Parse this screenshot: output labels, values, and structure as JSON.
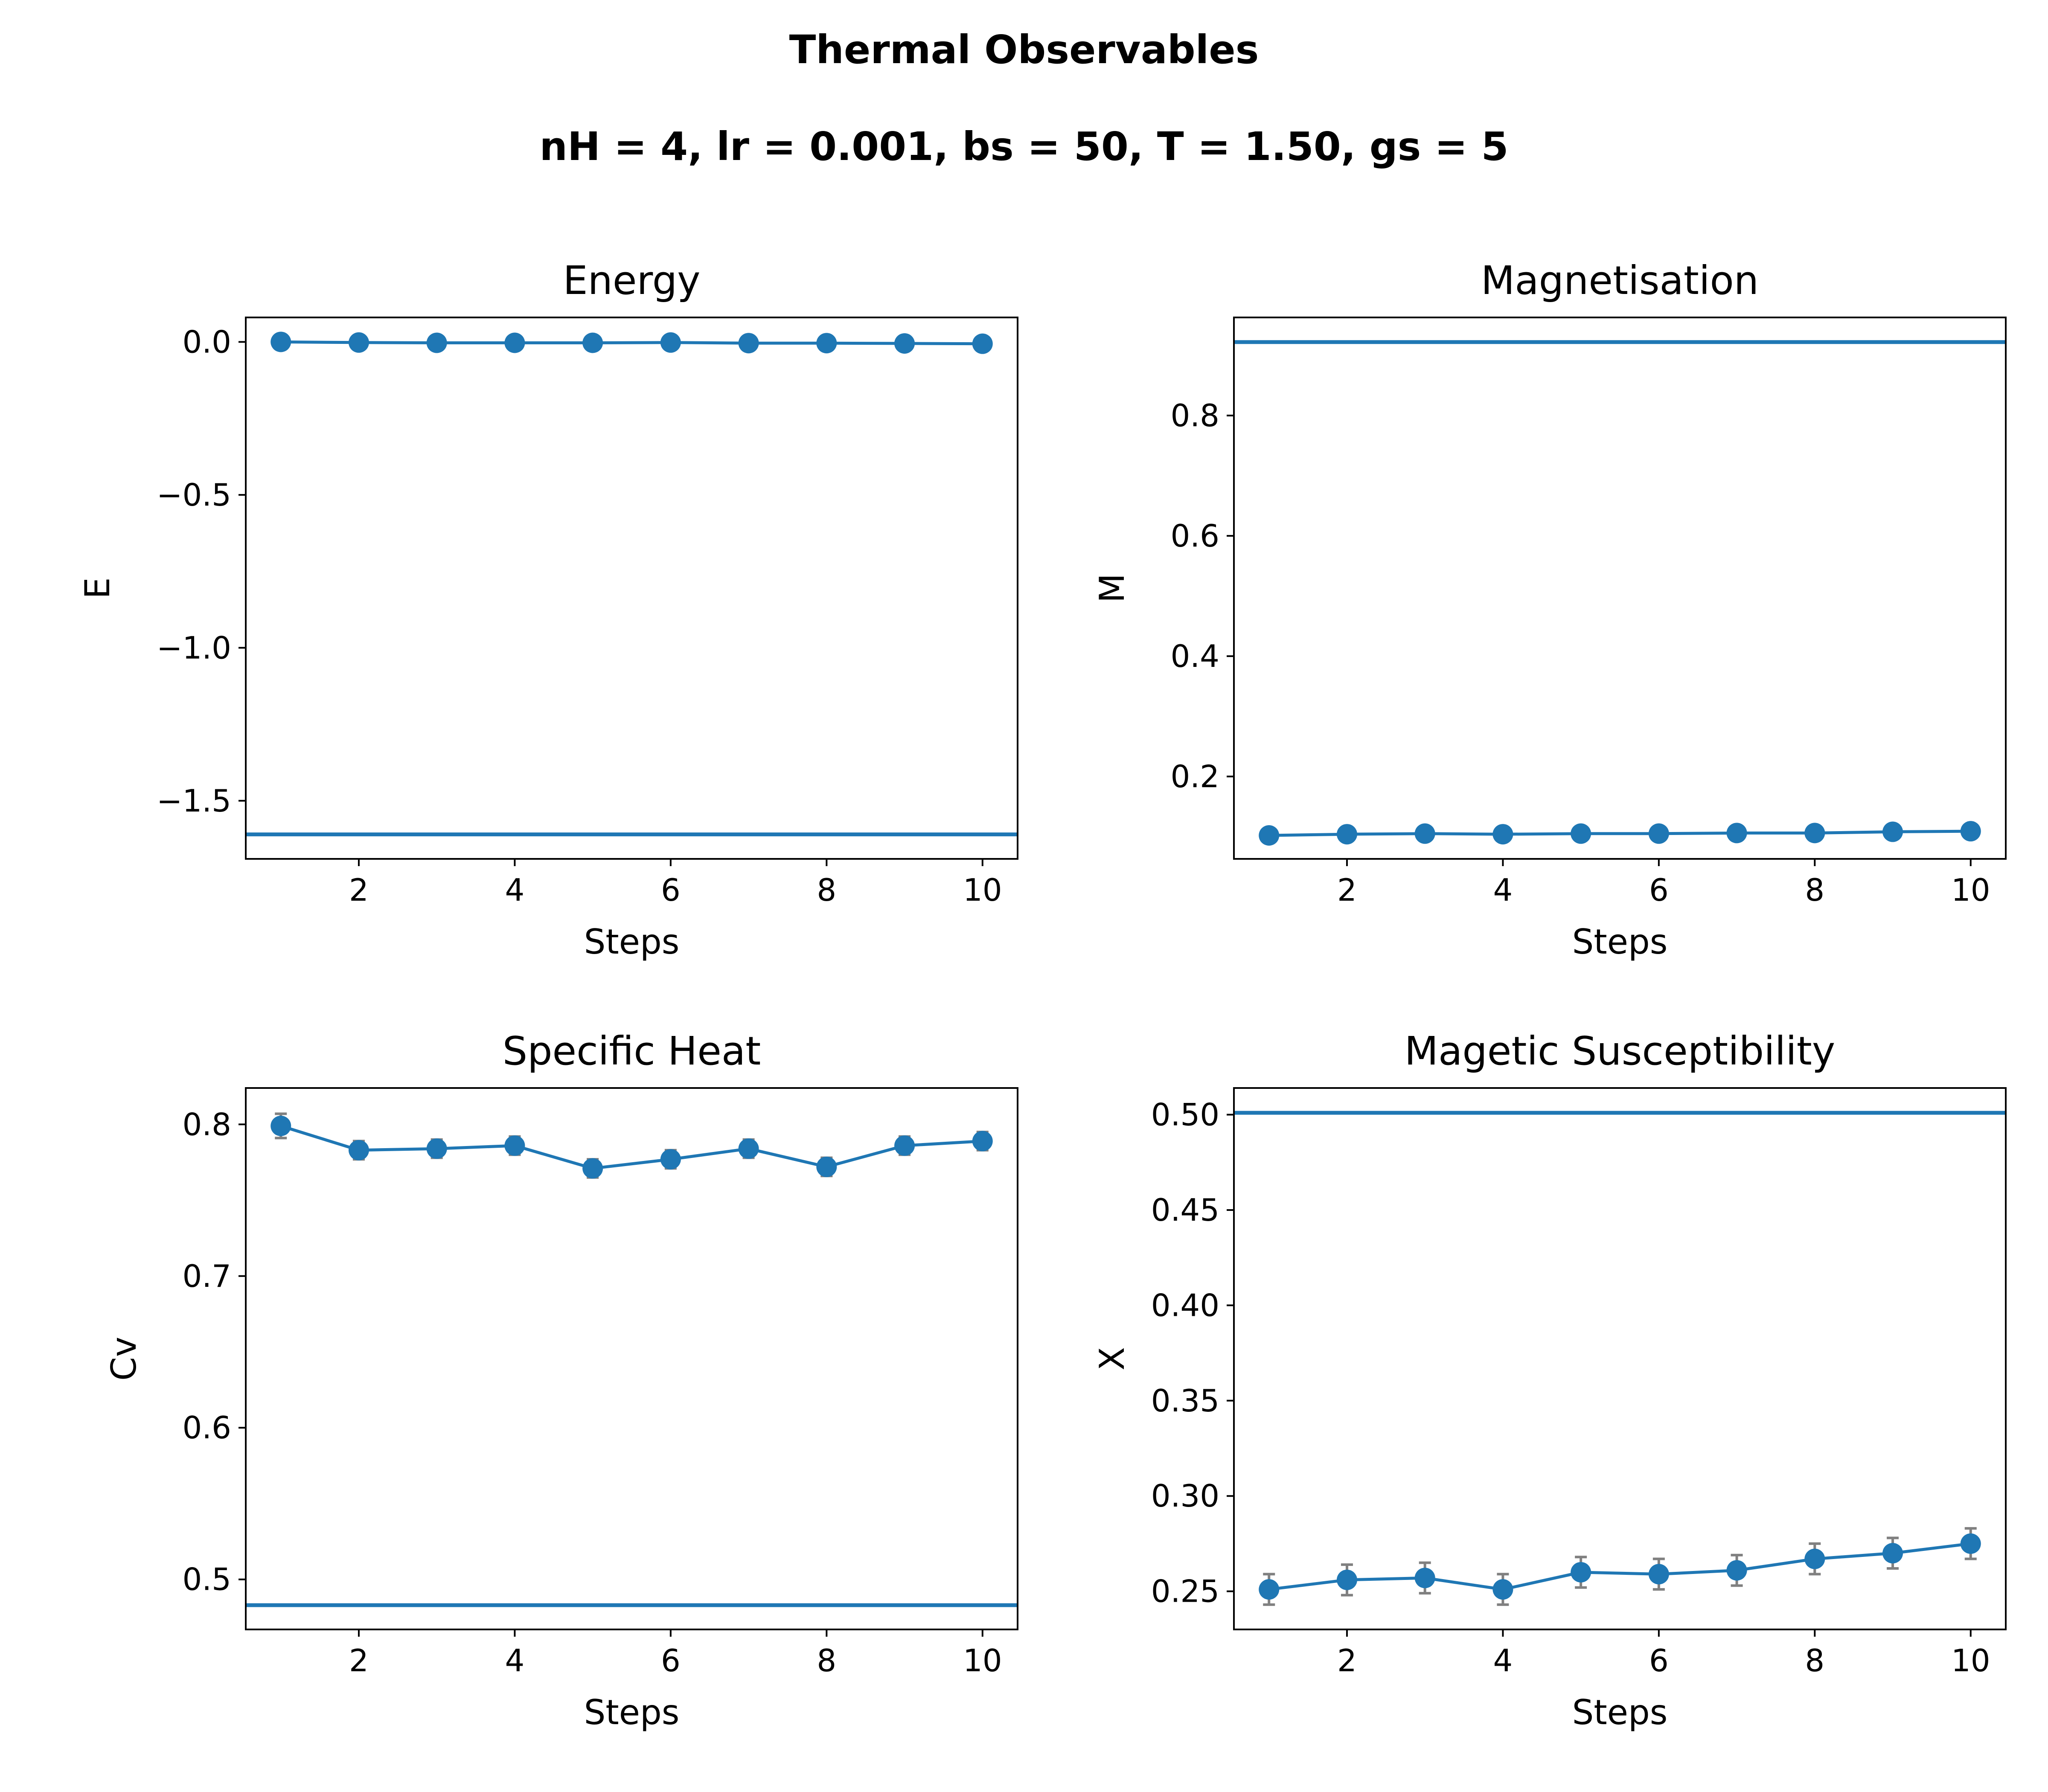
{
  "figure": {
    "title": "Thermal Observables",
    "subtitle": "nH = 4, lr = 0.001, bs = 50,  T = 1.50, gs = 5"
  },
  "colors": {
    "series": "#1f77b4",
    "errorbar": "#808080",
    "axes": "#000000"
  },
  "chart_data": [
    {
      "type": "line",
      "title": "Energy",
      "xlabel": "Steps",
      "ylabel": "E",
      "x": [
        1,
        2,
        3,
        4,
        5,
        6,
        7,
        8,
        9,
        10
      ],
      "series": [
        {
          "values": [
            0.0,
            -0.002,
            -0.003,
            -0.003,
            -0.003,
            -0.002,
            -0.004,
            -0.004,
            -0.005,
            -0.006
          ],
          "errors": null,
          "marker": "circle"
        }
      ],
      "reference_line": -1.61,
      "xlim": [
        0.55,
        10.45
      ],
      "ylim": [
        -1.69,
        0.08
      ],
      "xticks": [
        2,
        4,
        6,
        8,
        10
      ],
      "xticklabels": [
        "2",
        "4",
        "6",
        "8",
        "10"
      ],
      "yticks": [
        0.0,
        -0.5,
        -1.0,
        -1.5
      ],
      "yticklabels": [
        "0.0",
        "−0.5",
        "−1.0",
        "−1.5"
      ]
    },
    {
      "type": "line",
      "title": "Magnetisation",
      "xlabel": "Steps",
      "ylabel": "M",
      "x": [
        1,
        2,
        3,
        4,
        5,
        6,
        7,
        8,
        9,
        10
      ],
      "series": [
        {
          "values": [
            0.102,
            0.104,
            0.105,
            0.104,
            0.105,
            0.105,
            0.106,
            0.106,
            0.108,
            0.109
          ],
          "errors": null,
          "marker": "circle"
        }
      ],
      "reference_line": 0.922,
      "xlim": [
        0.55,
        10.45
      ],
      "ylim": [
        0.063,
        0.963
      ],
      "xticks": [
        2,
        4,
        6,
        8,
        10
      ],
      "xticklabels": [
        "2",
        "4",
        "6",
        "8",
        "10"
      ],
      "yticks": [
        0.2,
        0.4,
        0.6,
        0.8
      ],
      "yticklabels": [
        "0.2",
        "0.4",
        "0.6",
        "0.8"
      ]
    },
    {
      "type": "line",
      "title": "Specific Heat",
      "xlabel": "Steps",
      "ylabel": "Cv",
      "x": [
        1,
        2,
        3,
        4,
        5,
        6,
        7,
        8,
        9,
        10
      ],
      "series": [
        {
          "values": [
            0.799,
            0.783,
            0.784,
            0.786,
            0.771,
            0.777,
            0.784,
            0.772,
            0.786,
            0.789
          ],
          "errors": [
            0.008,
            0.006,
            0.006,
            0.006,
            0.006,
            0.006,
            0.006,
            0.006,
            0.006,
            0.006
          ],
          "marker": "circle"
        }
      ],
      "reference_line": 0.483,
      "xlim": [
        0.55,
        10.45
      ],
      "ylim": [
        0.467,
        0.824
      ],
      "xticks": [
        2,
        4,
        6,
        8,
        10
      ],
      "xticklabels": [
        "2",
        "4",
        "6",
        "8",
        "10"
      ],
      "yticks": [
        0.5,
        0.6,
        0.7,
        0.8
      ],
      "yticklabels": [
        "0.5",
        "0.6",
        "0.7",
        "0.8"
      ]
    },
    {
      "type": "line",
      "title": "Magetic Susceptibility",
      "xlabel": "Steps",
      "ylabel": "X",
      "x": [
        1,
        2,
        3,
        4,
        5,
        6,
        7,
        8,
        9,
        10
      ],
      "series": [
        {
          "values": [
            0.251,
            0.256,
            0.257,
            0.251,
            0.26,
            0.259,
            0.261,
            0.267,
            0.27,
            0.275
          ],
          "errors": [
            0.008,
            0.008,
            0.008,
            0.008,
            0.008,
            0.008,
            0.008,
            0.008,
            0.008,
            0.008
          ],
          "marker": "circle"
        }
      ],
      "reference_line": 0.501,
      "xlim": [
        0.55,
        10.45
      ],
      "ylim": [
        0.23,
        0.514
      ],
      "xticks": [
        2,
        4,
        6,
        8,
        10
      ],
      "xticklabels": [
        "2",
        "4",
        "6",
        "8",
        "10"
      ],
      "yticks": [
        0.25,
        0.3,
        0.35,
        0.4,
        0.45,
        0.5
      ],
      "yticklabels": [
        "0.25",
        "0.30",
        "0.35",
        "0.40",
        "0.45",
        "0.50"
      ]
    }
  ]
}
